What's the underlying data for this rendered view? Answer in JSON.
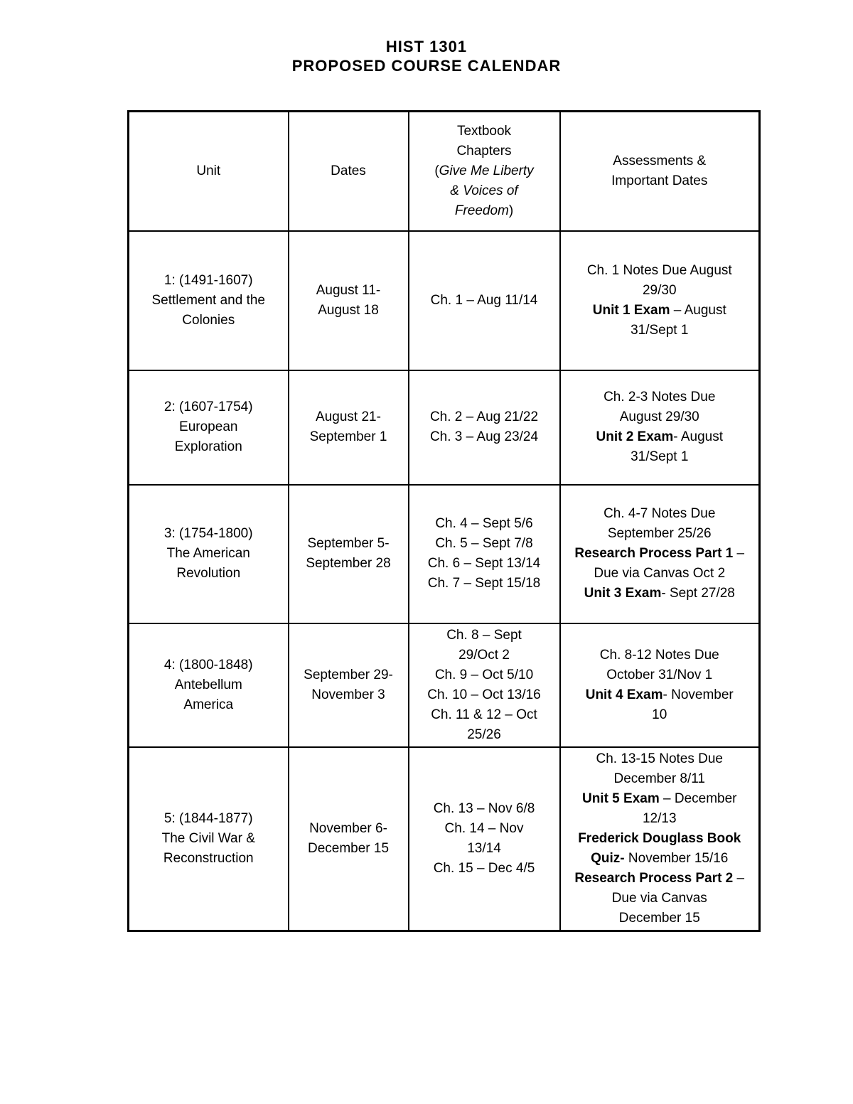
{
  "page": {
    "title_line1": "HIST 1301",
    "title_line2": "PROPOSED COURSE CALENDAR"
  },
  "colors": {
    "background": "#ffffff",
    "text": "#000000",
    "table_border": "#000000"
  },
  "table": {
    "header": [
      {
        "lines": [
          [
            {
              "t": "Unit"
            }
          ]
        ]
      },
      {
        "lines": [
          [
            {
              "t": "Dates"
            }
          ]
        ]
      },
      {
        "lines": [
          [
            {
              "t": "Textbook"
            }
          ],
          [
            {
              "t": "Chapters"
            }
          ],
          [
            {
              "t": "("
            },
            {
              "t": "Give Me Liberty",
              "i": true
            }
          ],
          [
            {
              "t": "& Voices of",
              "i": true
            }
          ],
          [
            {
              "t": "Freedom",
              "i": true
            },
            {
              "t": ")"
            }
          ]
        ]
      },
      {
        "lines": [
          [
            {
              "t": "Assessments &"
            }
          ],
          [
            {
              "t": "Important Dates"
            }
          ]
        ]
      }
    ],
    "rows": [
      {
        "cells": [
          {
            "lines": [
              [
                {
                  "t": "1: (1491-1607)"
                }
              ],
              [
                {
                  "t": "Settlement and the"
                }
              ],
              [
                {
                  "t": "Colonies"
                }
              ]
            ]
          },
          {
            "lines": [
              [
                {
                  "t": "August 11-"
                }
              ],
              [
                {
                  "t": "August 18"
                }
              ]
            ]
          },
          {
            "lines": [
              [
                {
                  "t": "Ch. 1 – Aug 11/14"
                }
              ]
            ]
          },
          {
            "lines": [
              [
                {
                  "t": "Ch. 1 Notes Due August"
                }
              ],
              [
                {
                  "t": "29/30"
                }
              ],
              [
                {
                  "t": "Unit 1 Exam",
                  "b": true
                },
                {
                  "t": " – August"
                }
              ],
              [
                {
                  "t": "31/Sept 1"
                }
              ]
            ]
          }
        ]
      },
      {
        "cells": [
          {
            "lines": [
              [
                {
                  "t": "2: (1607-1754)"
                }
              ],
              [
                {
                  "t": "European"
                }
              ],
              [
                {
                  "t": "Exploration"
                }
              ]
            ]
          },
          {
            "lines": [
              [
                {
                  "t": "August 21-"
                }
              ],
              [
                {
                  "t": "September 1"
                }
              ]
            ]
          },
          {
            "lines": [
              [
                {
                  "t": "Ch. 2 – Aug 21/22"
                }
              ],
              [
                {
                  "t": "Ch. 3 – Aug 23/24"
                }
              ]
            ]
          },
          {
            "lines": [
              [
                {
                  "t": "Ch. 2-3 Notes Due"
                }
              ],
              [
                {
                  "t": "August 29/30"
                }
              ],
              [
                {
                  "t": "Unit 2 Exam",
                  "b": true
                },
                {
                  "t": "- August"
                }
              ],
              [
                {
                  "t": "31/Sept 1"
                }
              ]
            ]
          }
        ]
      },
      {
        "cells": [
          {
            "lines": [
              [
                {
                  "t": "3: (1754-1800)"
                }
              ],
              [
                {
                  "t": "The American"
                }
              ],
              [
                {
                  "t": "Revolution"
                }
              ]
            ]
          },
          {
            "lines": [
              [
                {
                  "t": "September 5-"
                }
              ],
              [
                {
                  "t": "September 28"
                }
              ]
            ]
          },
          {
            "lines": [
              [
                {
                  "t": "Ch. 4 – Sept 5/6"
                }
              ],
              [
                {
                  "t": "Ch. 5 – Sept 7/8"
                }
              ],
              [
                {
                  "t": "Ch. 6 – Sept 13/14"
                }
              ],
              [
                {
                  "t": "Ch. 7 – Sept 15/18"
                }
              ]
            ]
          },
          {
            "lines": [
              [
                {
                  "t": "Ch. 4-7 Notes Due"
                }
              ],
              [
                {
                  "t": "September 25/26"
                }
              ],
              [
                {
                  "t": "Research Process Part 1",
                  "b": true
                },
                {
                  "t": " –"
                }
              ],
              [
                {
                  "t": "Due via Canvas Oct 2"
                }
              ],
              [
                {
                  "t": "Unit 3 Exam",
                  "b": true
                },
                {
                  "t": "- Sept 27/28"
                }
              ]
            ]
          }
        ]
      },
      {
        "cells": [
          {
            "lines": [
              [
                {
                  "t": "4: (1800-1848)"
                }
              ],
              [
                {
                  "t": "Antebellum"
                }
              ],
              [
                {
                  "t": "America"
                }
              ]
            ]
          },
          {
            "lines": [
              [
                {
                  "t": "September 29-"
                }
              ],
              [
                {
                  "t": "November 3"
                }
              ]
            ]
          },
          {
            "lines": [
              [
                {
                  "t": "Ch. 8 – Sept"
                }
              ],
              [
                {
                  "t": "29/Oct 2"
                }
              ],
              [
                {
                  "t": "Ch. 9 – Oct 5/10"
                }
              ],
              [
                {
                  "t": "Ch. 10 – Oct 13/16"
                }
              ],
              [
                {
                  "t": "Ch. 11 & 12 – Oct"
                }
              ],
              [
                {
                  "t": "25/26"
                }
              ]
            ]
          },
          {
            "lines": [
              [
                {
                  "t": "Ch. 8-12 Notes Due"
                }
              ],
              [
                {
                  "t": "October 31/Nov 1"
                }
              ],
              [
                {
                  "t": "Unit 4 Exam",
                  "b": true
                },
                {
                  "t": "- November"
                }
              ],
              [
                {
                  "t": "10"
                }
              ]
            ]
          }
        ]
      },
      {
        "cells": [
          {
            "lines": [
              [
                {
                  "t": "5: (1844-1877)"
                }
              ],
              [
                {
                  "t": "The Civil War &"
                }
              ],
              [
                {
                  "t": "Reconstruction"
                }
              ]
            ]
          },
          {
            "lines": [
              [
                {
                  "t": "November 6-"
                }
              ],
              [
                {
                  "t": "December 15"
                }
              ]
            ]
          },
          {
            "lines": [
              [
                {
                  "t": "Ch. 13 – Nov 6/8"
                }
              ],
              [
                {
                  "t": "Ch. 14 – Nov"
                }
              ],
              [
                {
                  "t": "13/14"
                }
              ],
              [
                {
                  "t": "Ch. 15 – Dec 4/5"
                }
              ]
            ]
          },
          {
            "lines": [
              [
                {
                  "t": "Ch. 13-15 Notes Due"
                }
              ],
              [
                {
                  "t": "December 8/11"
                }
              ],
              [
                {
                  "t": "Unit 5 Exam",
                  "b": true
                },
                {
                  "t": " – December"
                }
              ],
              [
                {
                  "t": "12/13"
                }
              ],
              [
                {
                  "t": "Frederick Douglass Book",
                  "b": true
                }
              ],
              [
                {
                  "t": "Quiz-",
                  "b": true
                },
                {
                  "t": " November 15/16"
                }
              ],
              [
                {
                  "t": "Research Process Part 2",
                  "b": true
                },
                {
                  "t": " –"
                }
              ],
              [
                {
                  "t": "Due via Canvas"
                }
              ],
              [
                {
                  "t": "December 15"
                }
              ]
            ]
          }
        ]
      }
    ]
  }
}
